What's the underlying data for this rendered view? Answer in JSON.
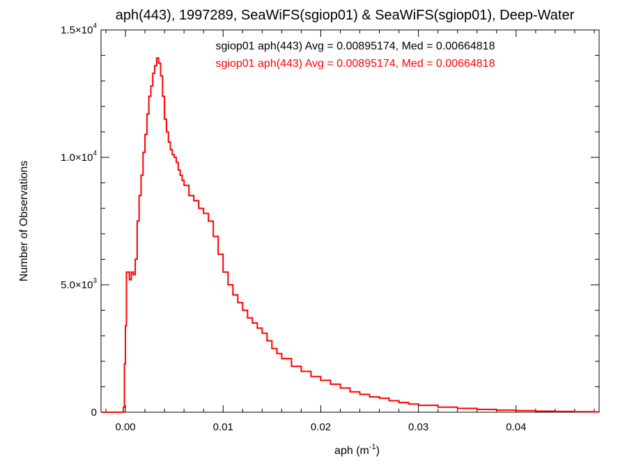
{
  "chart_data": {
    "type": "line",
    "title": "aph(443), 1997289, SeaWiFS(sgiop01) & SeaWiFS(sgiop01), Deep-Water",
    "xlabel_main": "aph (m",
    "xlabel_sup": "-1",
    "xlabel_close": ")",
    "ylabel": "Number of Observations",
    "xlim": [
      -0.0025,
      0.0485
    ],
    "ylim": [
      0,
      15000
    ],
    "x_ticks": [
      {
        "value": 0.0,
        "label": "0.00"
      },
      {
        "value": 0.01,
        "label": "0.01"
      },
      {
        "value": 0.02,
        "label": "0.02"
      },
      {
        "value": 0.03,
        "label": "0.03"
      },
      {
        "value": 0.04,
        "label": "0.04"
      }
    ],
    "y_ticks": [
      {
        "value": 0,
        "mant": "0",
        "exp": ""
      },
      {
        "value": 5000,
        "mant": "5.0×10",
        "exp": "3"
      },
      {
        "value": 10000,
        "mant": "1.0×10",
        "exp": "4"
      },
      {
        "value": 15000,
        "mant": "1.5×10",
        "exp": "4"
      }
    ],
    "series": [
      {
        "name": "sgiop01 aph(443) Avg = 0.00895174, Med = 0.00664818",
        "color": "#000000",
        "x": [
          -0.0024,
          -0.0004,
          -0.0002,
          -0.0001,
          0.0,
          0.0001,
          0.0002,
          0.0004,
          0.0006,
          0.0008,
          0.001,
          0.0012,
          0.0014,
          0.0016,
          0.0018,
          0.002,
          0.0022,
          0.0024,
          0.0026,
          0.0028,
          0.003,
          0.0032,
          0.0034,
          0.0036,
          0.0038,
          0.004,
          0.0042,
          0.0044,
          0.0046,
          0.0048,
          0.005,
          0.0052,
          0.0054,
          0.0056,
          0.0058,
          0.006,
          0.0065,
          0.007,
          0.0075,
          0.008,
          0.0085,
          0.009,
          0.0095,
          0.01,
          0.0105,
          0.011,
          0.0115,
          0.012,
          0.0125,
          0.013,
          0.0135,
          0.014,
          0.0145,
          0.015,
          0.0155,
          0.016,
          0.017,
          0.018,
          0.019,
          0.02,
          0.021,
          0.022,
          0.023,
          0.024,
          0.025,
          0.026,
          0.027,
          0.028,
          0.029,
          0.03,
          0.032,
          0.034,
          0.036,
          0.038,
          0.04,
          0.042,
          0.044,
          0.046,
          0.048
        ],
        "y": [
          0,
          0,
          200,
          1900,
          3400,
          5500,
          5500,
          5200,
          5500,
          5400,
          6000,
          7500,
          8500,
          9300,
          10200,
          10900,
          11700,
          12400,
          12800,
          13300,
          13600,
          13900,
          13700,
          13200,
          12400,
          11500,
          11000,
          10600,
          10300,
          10100,
          10000,
          9800,
          9500,
          9300,
          9100,
          8900,
          8500,
          8300,
          8000,
          7800,
          7500,
          6900,
          6200,
          5500,
          5000,
          4600,
          4300,
          4000,
          3700,
          3500,
          3300,
          3100,
          2800,
          2500,
          2300,
          2100,
          1800,
          1600,
          1400,
          1250,
          1100,
          950,
          800,
          700,
          600,
          550,
          450,
          380,
          320,
          270,
          200,
          150,
          110,
          80,
          60,
          40,
          30,
          20,
          10
        ]
      },
      {
        "name": "sgiop01 aph(443) Avg = 0.00895174, Med = 0.00664818",
        "color": "#ff0000",
        "x": [
          -0.0024,
          -0.0004,
          -0.0002,
          -0.0001,
          0.0,
          0.0001,
          0.0002,
          0.0004,
          0.0006,
          0.0008,
          0.001,
          0.0012,
          0.0014,
          0.0016,
          0.0018,
          0.002,
          0.0022,
          0.0024,
          0.0026,
          0.0028,
          0.003,
          0.0032,
          0.0034,
          0.0036,
          0.0038,
          0.004,
          0.0042,
          0.0044,
          0.0046,
          0.0048,
          0.005,
          0.0052,
          0.0054,
          0.0056,
          0.0058,
          0.006,
          0.0065,
          0.007,
          0.0075,
          0.008,
          0.0085,
          0.009,
          0.0095,
          0.01,
          0.0105,
          0.011,
          0.0115,
          0.012,
          0.0125,
          0.013,
          0.0135,
          0.014,
          0.0145,
          0.015,
          0.0155,
          0.016,
          0.017,
          0.018,
          0.019,
          0.02,
          0.021,
          0.022,
          0.023,
          0.024,
          0.025,
          0.026,
          0.027,
          0.028,
          0.029,
          0.03,
          0.032,
          0.034,
          0.036,
          0.038,
          0.04,
          0.042,
          0.044,
          0.046,
          0.048
        ],
        "y": [
          0,
          0,
          200,
          1900,
          3400,
          5500,
          5500,
          5200,
          5500,
          5400,
          6000,
          7500,
          8500,
          9300,
          10200,
          10900,
          11700,
          12400,
          12800,
          13300,
          13600,
          13900,
          13700,
          13200,
          12400,
          11500,
          11000,
          10600,
          10300,
          10100,
          10000,
          9800,
          9500,
          9300,
          9100,
          8900,
          8500,
          8300,
          8000,
          7800,
          7500,
          6900,
          6200,
          5500,
          5000,
          4600,
          4300,
          4000,
          3700,
          3500,
          3300,
          3100,
          2800,
          2500,
          2300,
          2100,
          1800,
          1600,
          1400,
          1250,
          1100,
          950,
          800,
          700,
          600,
          550,
          450,
          380,
          320,
          270,
          200,
          150,
          110,
          80,
          60,
          40,
          30,
          20,
          10
        ]
      }
    ],
    "grid": false,
    "legend_position": "top-right"
  }
}
